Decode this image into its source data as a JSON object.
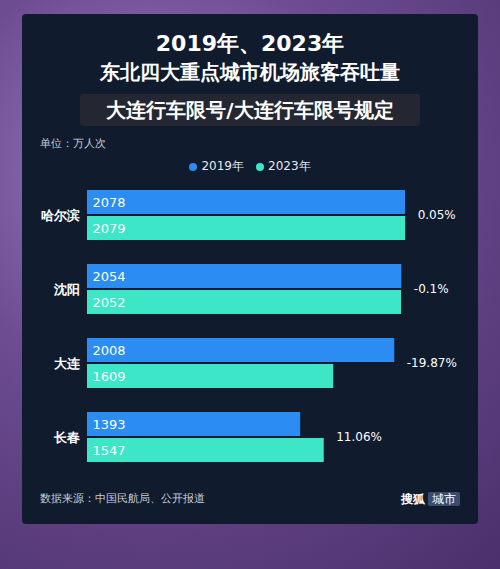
{
  "chart_data": {
    "type": "bar",
    "orientation": "horizontal",
    "title": "2019年、2023年",
    "subtitle": "东北四大重点城市机场旅客吞吐量",
    "unit": "单位：万人次",
    "categories": [
      "哈尔滨",
      "沈阳",
      "大连",
      "长春"
    ],
    "series": [
      {
        "name": "2019年",
        "color": "#2b8cf2",
        "values": [
          2078,
          2054,
          2008,
          1393
        ]
      },
      {
        "name": "2023年",
        "color": "#3ee6c8",
        "values": [
          2079,
          2052,
          1609,
          1547
        ]
      }
    ],
    "annotations": [
      "0.05%",
      "-0.1%",
      "-19.87%",
      "11.06%"
    ],
    "xlim": [
      0,
      2150
    ],
    "data_labels": true,
    "tick_labels": "y",
    "legend": "top",
    "source": "数据来源：中国民航局、公开报道",
    "logo": [
      "搜狐",
      "城市"
    ],
    "overlay_text": "大连行车限号/大连行车限号规定"
  }
}
